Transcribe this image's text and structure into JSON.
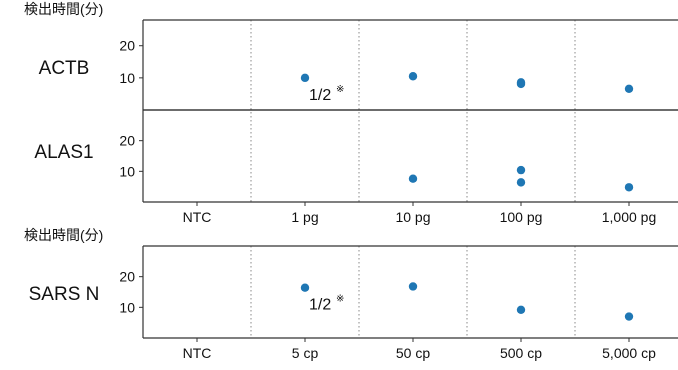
{
  "chart_data": [
    {
      "type": "scatter",
      "ylabel": "検出時間(分)",
      "categories": [
        "NTC",
        "1 pg",
        "10 pg",
        "100 pg",
        "1,000 pg"
      ],
      "panels": [
        {
          "name": "ACTB",
          "yticks": [
            10,
            20
          ],
          "ylim": [
            0,
            28
          ],
          "points": [
            {
              "category": "1 pg",
              "y": 10
            },
            {
              "category": "10 pg",
              "y": 10.5
            },
            {
              "category": "100 pg",
              "y": 8.6
            },
            {
              "category": "100 pg",
              "y": 8.1
            },
            {
              "category": "1,000 pg",
              "y": 6.6
            }
          ],
          "annotation": {
            "category": "1 pg",
            "text": "1/2",
            "mark": "※"
          }
        },
        {
          "name": "ALAS1",
          "yticks": [
            10,
            20
          ],
          "ylim": [
            0,
            30
          ],
          "points": [
            {
              "category": "10 pg",
              "y": 7.6
            },
            {
              "category": "100 pg",
              "y": 10.4
            },
            {
              "category": "100 pg",
              "y": 6.4
            },
            {
              "category": "1,000 pg",
              "y": 4.8
            }
          ]
        }
      ]
    },
    {
      "type": "scatter",
      "ylabel": "検出時間(分)",
      "categories": [
        "NTC",
        "5 cp",
        "50 cp",
        "500 cp",
        "5,000 cp"
      ],
      "panels": [
        {
          "name": "SARS N",
          "yticks": [
            10,
            20
          ],
          "ylim": [
            0,
            30
          ],
          "points": [
            {
              "category": "5 cp",
              "y": 16.4
            },
            {
              "category": "50 cp",
              "y": 16.8
            },
            {
              "category": "500 cp",
              "y": 9.2
            },
            {
              "category": "5,000 cp",
              "y": 7.0
            }
          ],
          "annotation": {
            "category": "5 cp",
            "text": "1/2",
            "mark": "※"
          }
        }
      ]
    }
  ],
  "colors": {
    "point": "#1f77b4",
    "axis": "#333333",
    "separator": "#888888"
  }
}
